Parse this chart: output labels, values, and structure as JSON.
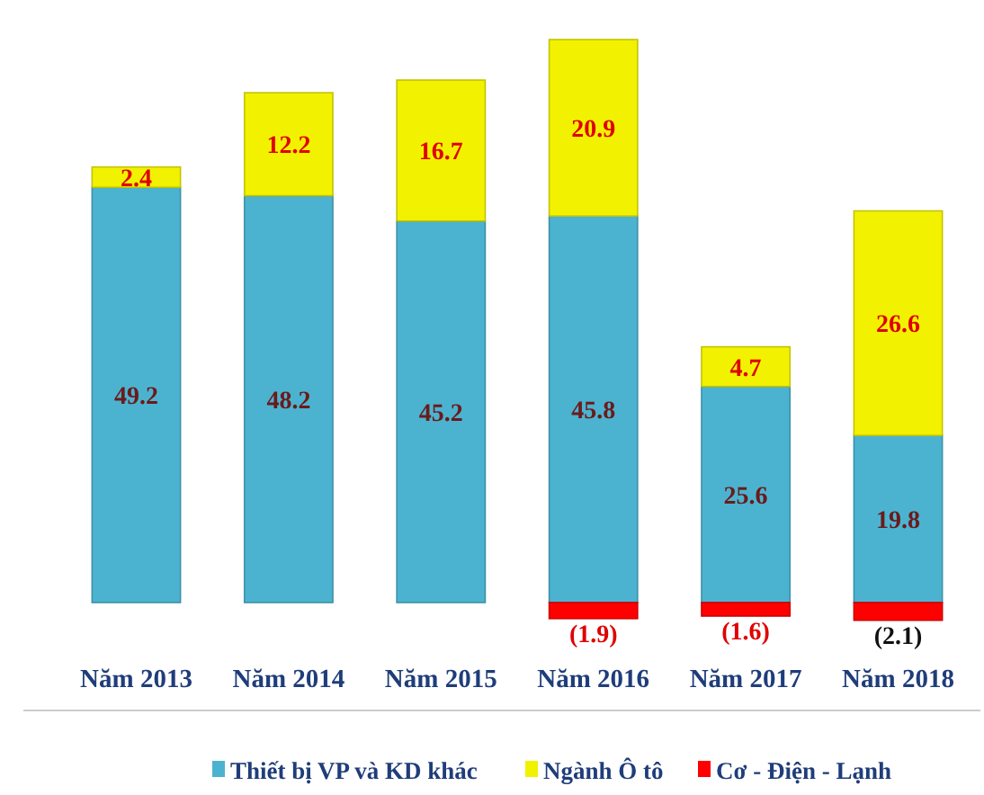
{
  "chart_data": {
    "type": "bar",
    "stacked": true,
    "relative": false,
    "categories": [
      "Năm 2013",
      "Năm 2014",
      "Năm 2015",
      "Năm 2016",
      "Năm 2017",
      "Năm 2018"
    ],
    "series": [
      {
        "name": "Thiết bị VP và KD khác",
        "color": "#4bb3d0",
        "values": [
          49.2,
          48.2,
          45.2,
          45.8,
          25.6,
          19.8
        ],
        "value_labels": [
          "49.2",
          "48.2",
          "45.2",
          "45.8",
          "25.6",
          "19.8"
        ]
      },
      {
        "name": "Ngành Ô tô",
        "color": "#f2f200",
        "values": [
          2.4,
          12.2,
          16.7,
          20.9,
          4.7,
          26.6
        ],
        "value_labels": [
          "2.4",
          "12.2",
          "16.7",
          "20.9",
          "4.7",
          "26.6"
        ]
      },
      {
        "name": "Cơ - Điện - Lạnh",
        "color": "#ff0000",
        "values": [
          null,
          null,
          null,
          -1.9,
          -1.6,
          -2.1
        ],
        "value_labels": [
          null,
          null,
          null,
          "(1.9)",
          "(1.6)",
          "(2.1)"
        ]
      }
    ],
    "legend": "bottom"
  }
}
